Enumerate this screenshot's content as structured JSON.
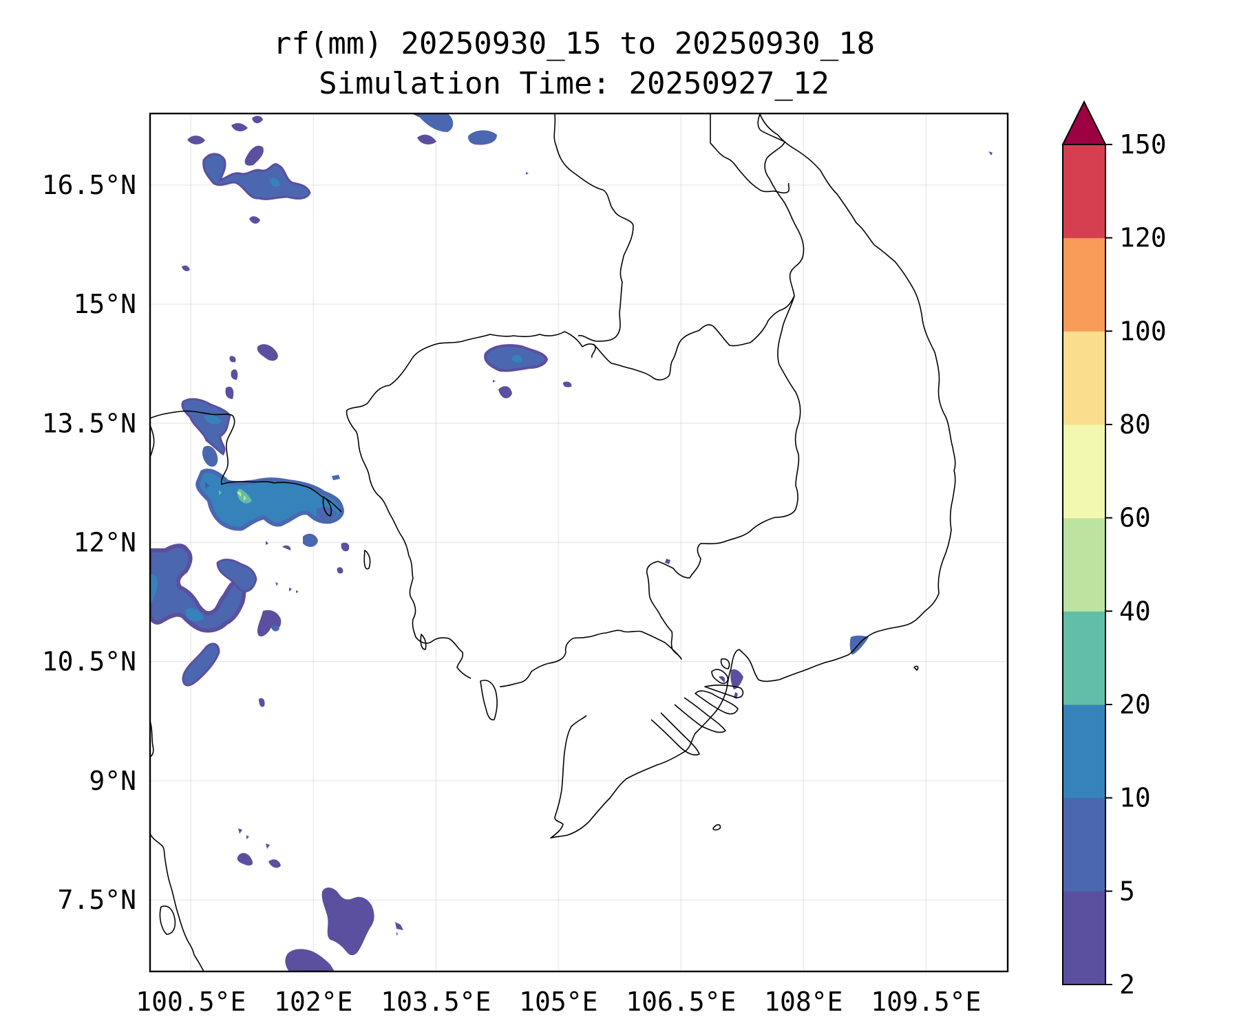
{
  "figure": {
    "title_line1": "rf(mm) 20250930_15 to 20250930_18",
    "title_line2": "Simulation Time: 20250927_12"
  },
  "map": {
    "lon_range": [
      100.0,
      110.5
    ],
    "lat_range": [
      6.6,
      17.4
    ],
    "x_ticks": [
      {
        "value": 100.5,
        "label": "100.5°E"
      },
      {
        "value": 102.0,
        "label": "102°E"
      },
      {
        "value": 103.5,
        "label": "103.5°E"
      },
      {
        "value": 105.0,
        "label": "105°E"
      },
      {
        "value": 106.5,
        "label": "106.5°E"
      },
      {
        "value": 108.0,
        "label": "108°E"
      },
      {
        "value": 109.5,
        "label": "109.5°E"
      }
    ],
    "y_ticks": [
      {
        "value": 16.5,
        "label": "16.5°N"
      },
      {
        "value": 15.0,
        "label": "15°N"
      },
      {
        "value": 13.5,
        "label": "13.5°N"
      },
      {
        "value": 12.0,
        "label": "12°N"
      },
      {
        "value": 10.5,
        "label": "10.5°N"
      },
      {
        "value": 9.0,
        "label": "9°N"
      },
      {
        "value": 7.5,
        "label": "7.5°N"
      }
    ],
    "gridlines": true
  },
  "colorbar": {
    "levels": [
      2,
      5,
      10,
      20,
      40,
      60,
      80,
      100,
      120,
      150
    ],
    "tick_labels": [
      "2",
      "5",
      "10",
      "20",
      "40",
      "60",
      "80",
      "100",
      "120",
      "150"
    ],
    "colors": [
      "#5b4f9f",
      "#4a67b0",
      "#3682ba",
      "#62bea6",
      "#bde3a1",
      "#f2f8b0",
      "#fbde8d",
      "#f99b59",
      "#d53f50"
    ],
    "extend_color": "#9e0142",
    "extend": "max"
  },
  "chart_data": {
    "type": "heatmap",
    "title": "rf(mm) 20250930_15 to 20250930_18",
    "subtitle": "Simulation Time: 20250927_12",
    "xlabel": "",
    "ylabel": "",
    "xlim": [
      100.0,
      110.5
    ],
    "ylim": [
      6.6,
      17.4
    ],
    "units": "mm",
    "rain_cells": [
      {
        "lon": 101.4,
        "lat": 16.25,
        "level": 5
      },
      {
        "lon": 101.5,
        "lat": 16.3,
        "level": 10
      },
      {
        "lon": 101.0,
        "lat": 16.4,
        "level": 5
      },
      {
        "lon": 100.6,
        "lat": 16.7,
        "level": 2
      },
      {
        "lon": 101.2,
        "lat": 16.5,
        "level": 2
      },
      {
        "lon": 103.0,
        "lat": 17.1,
        "level": 2
      },
      {
        "lon": 102.9,
        "lat": 16.8,
        "level": 2
      },
      {
        "lon": 103.6,
        "lat": 16.85,
        "level": 2
      },
      {
        "lon": 104.2,
        "lat": 13.95,
        "level": 5
      },
      {
        "lon": 104.1,
        "lat": 13.95,
        "level": 10
      },
      {
        "lon": 101.4,
        "lat": 14.1,
        "level": 2
      },
      {
        "lon": 101.0,
        "lat": 13.8,
        "level": 2
      },
      {
        "lon": 100.8,
        "lat": 13.5,
        "level": 5
      },
      {
        "lon": 101.5,
        "lat": 12.6,
        "level": 10
      },
      {
        "lon": 101.4,
        "lat": 12.6,
        "level": 20
      },
      {
        "lon": 100.5,
        "lat": 11.5,
        "level": 5
      },
      {
        "lon": 100.8,
        "lat": 11.2,
        "level": 10
      },
      {
        "lon": 101.2,
        "lat": 11.5,
        "level": 5
      },
      {
        "lon": 101.5,
        "lat": 11.05,
        "level": 5
      },
      {
        "lon": 100.7,
        "lat": 10.4,
        "level": 5
      },
      {
        "lon": 102.0,
        "lat": 7.6,
        "level": 5
      },
      {
        "lon": 101.8,
        "lat": 6.8,
        "level": 5
      },
      {
        "lon": 101.2,
        "lat": 8.4,
        "level": 2
      },
      {
        "lon": 108.2,
        "lat": 10.8,
        "level": 5
      },
      {
        "lon": 106.8,
        "lat": 10.4,
        "level": 5
      }
    ]
  }
}
